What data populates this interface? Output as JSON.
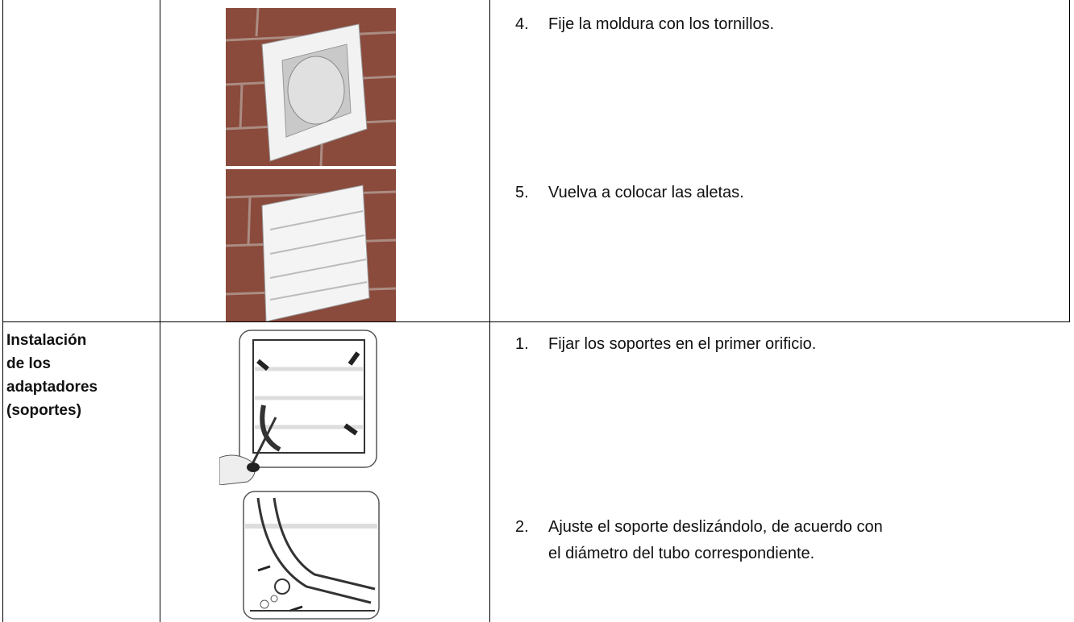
{
  "table": {
    "rows": [
      {
        "steps": [
          {
            "number": "4.",
            "text": "Fije la moldura con los tornillos."
          },
          {
            "number": "5.",
            "text": "Vuelva a colocar las aletas."
          }
        ]
      },
      {
        "label": "Instalación de los adaptadores (soportes)",
        "steps": [
          {
            "number": "1.",
            "text": "Fijar los soportes en el primer orificio."
          },
          {
            "number": "2.",
            "text": "Ajuste el soporte deslizándolo, de acuerdo con el diámetro del tubo correspondiente."
          }
        ]
      }
    ]
  }
}
